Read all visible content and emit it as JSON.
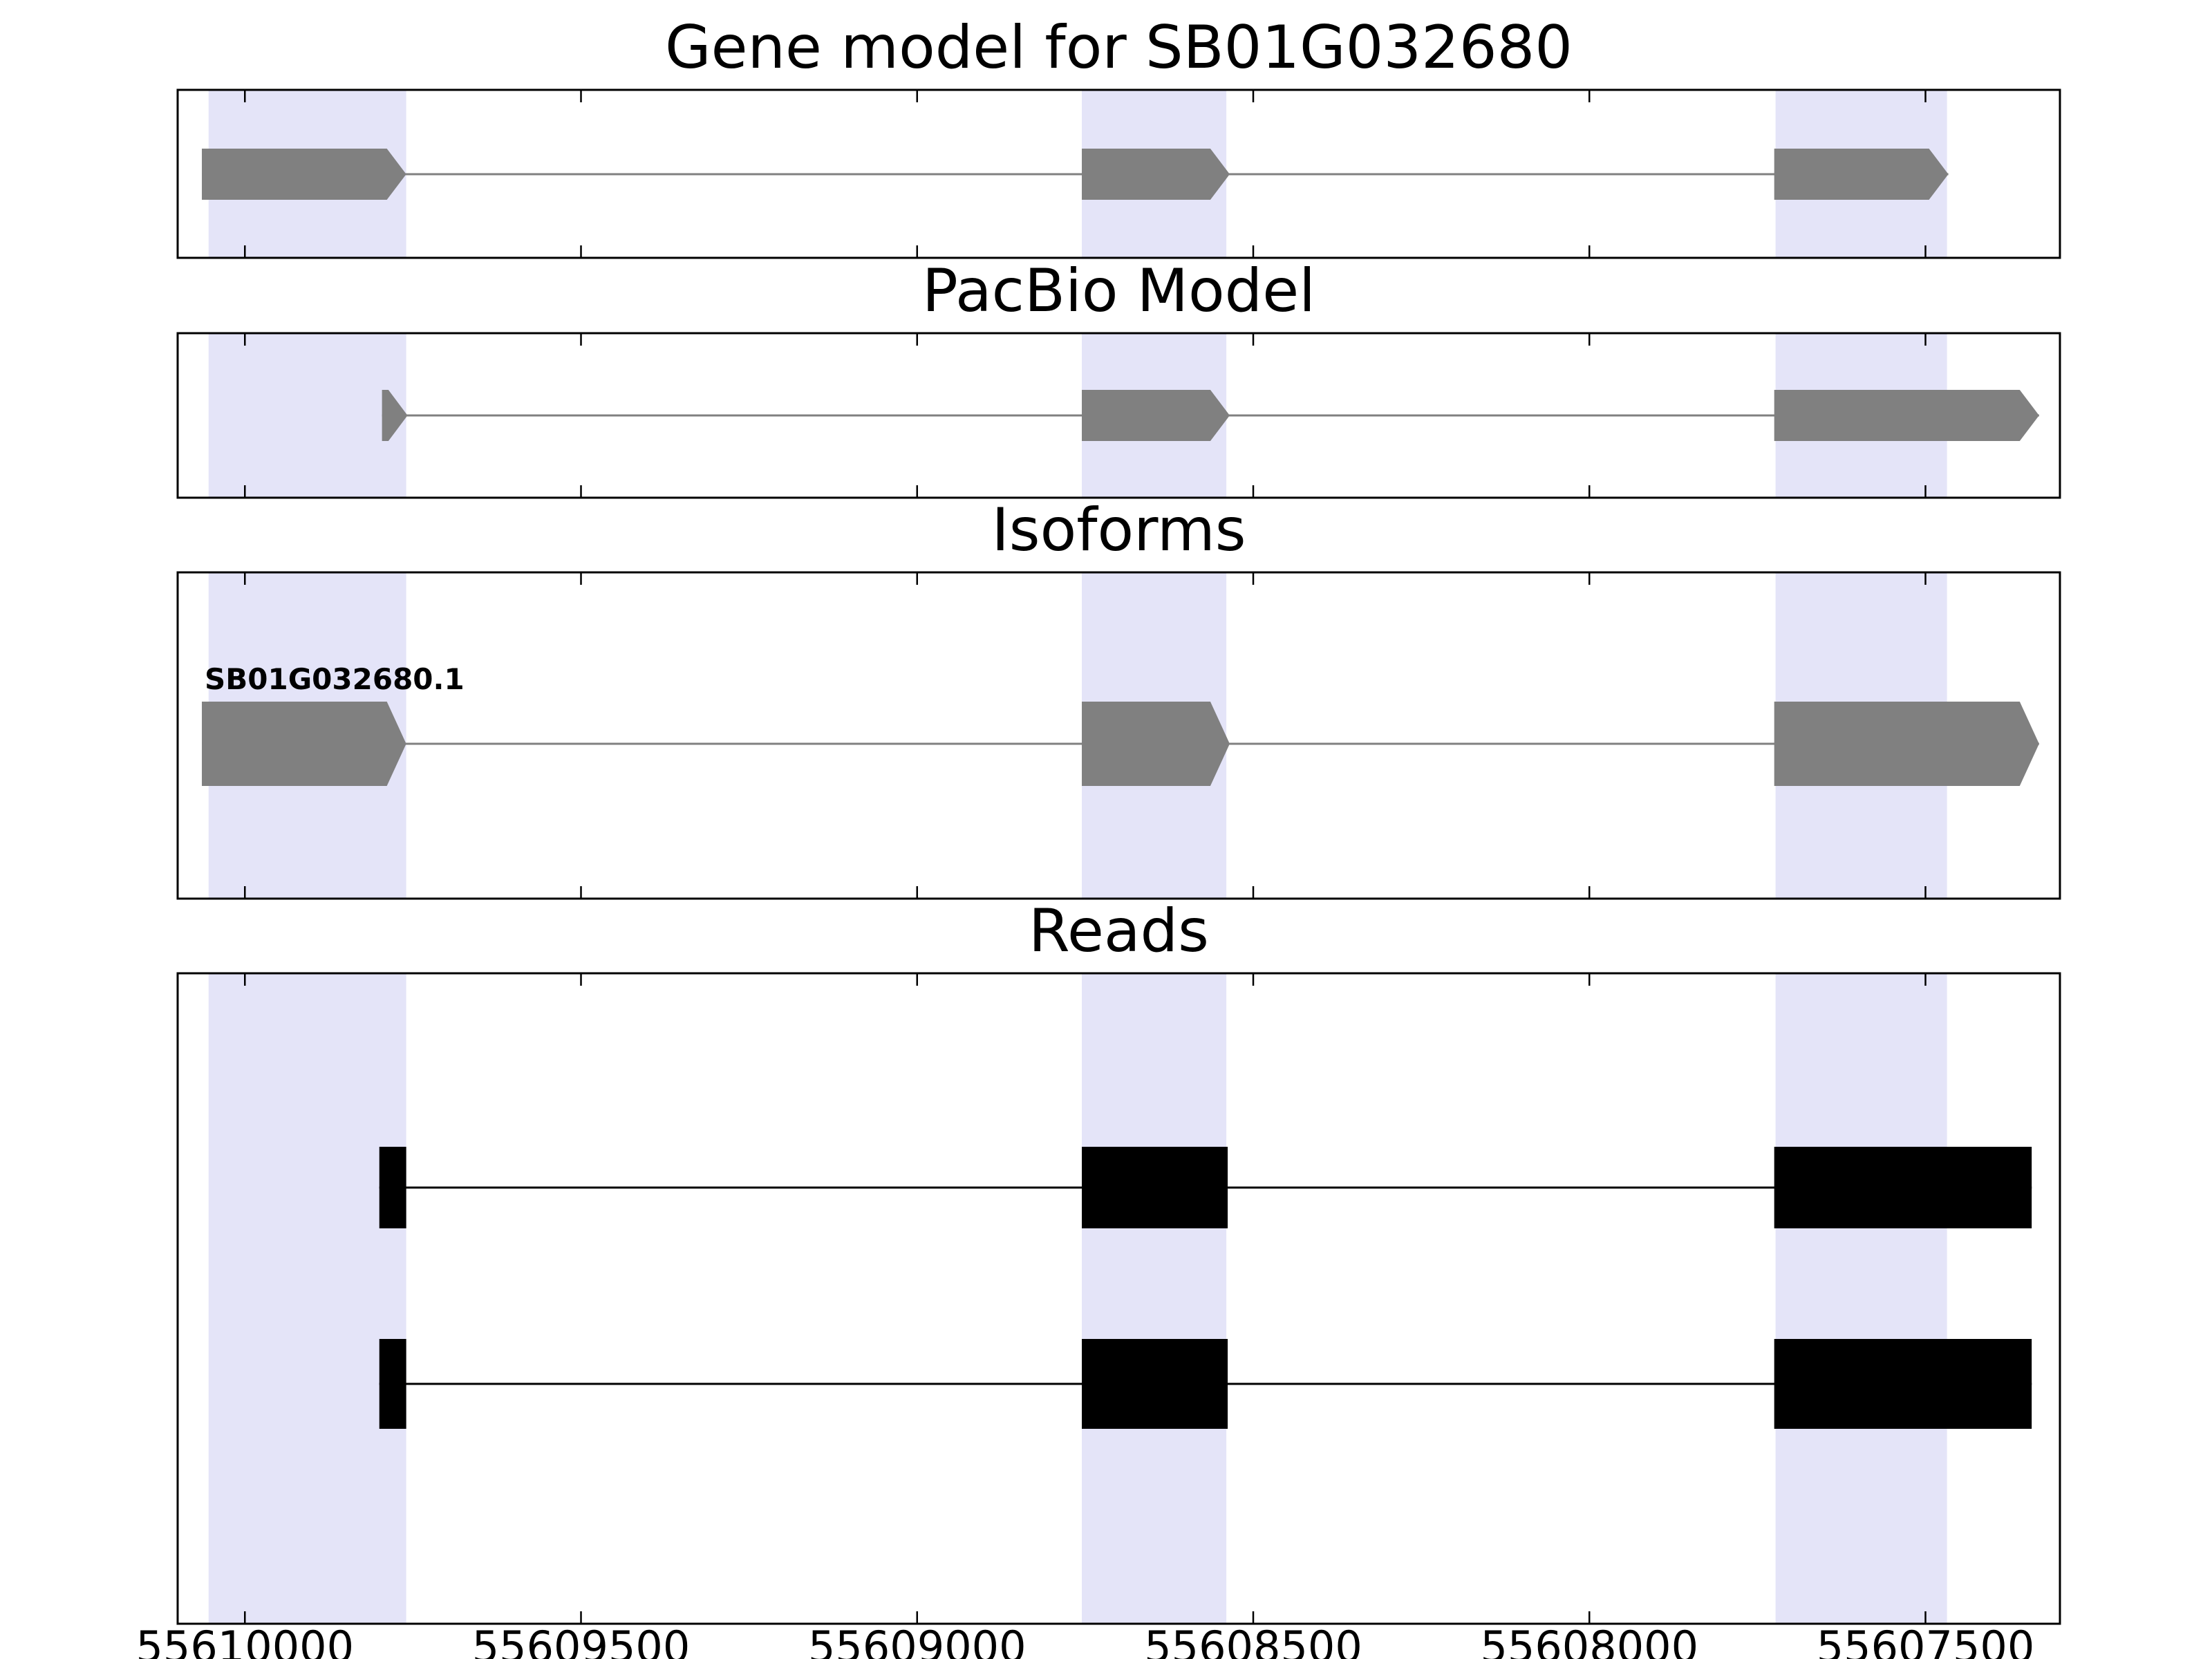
{
  "figure": {
    "background": "#ffffff",
    "highlight_color": "#e4e4f8",
    "gene_color": "#808080",
    "read_color": "#000000",
    "border_color": "#000000"
  },
  "chart_data": {
    "type": "gene-model-tracks",
    "x_axis": {
      "ticks": [
        "55610000",
        "55609500",
        "55609000",
        "55608500",
        "55608000",
        "55607500"
      ],
      "tick_values": [
        55610000,
        55609500,
        55609000,
        55608500,
        55608000,
        55607500
      ],
      "range": [
        55610100,
        55607300
      ],
      "inverted": true,
      "grid": false
    },
    "highlight_regions": [
      {
        "start": 55610054,
        "end": 55609760
      },
      {
        "start": 55608755,
        "end": 55608540
      },
      {
        "start": 55607723,
        "end": 55607468
      }
    ],
    "panels": [
      {
        "id": "gene-model",
        "title": "Gene model for SB01G032680",
        "features": [
          {
            "kind": "transcript",
            "color": "gene",
            "arrow": true,
            "exons": [
              [
                55610064,
                55609760
              ],
              [
                55608755,
                55608535
              ],
              [
                55607725,
                55607466
              ]
            ]
          }
        ]
      },
      {
        "id": "pacbio-model",
        "title": "PacBio Model",
        "features": [
          {
            "kind": "transcript",
            "color": "gene",
            "arrow": true,
            "exons": [
              [
                55609796,
                55609758
              ],
              [
                55608755,
                55608535
              ],
              [
                55607725,
                55607331
              ]
            ]
          }
        ]
      },
      {
        "id": "isoforms",
        "title": "Isoforms",
        "features": [
          {
            "kind": "transcript",
            "label": "SB01G032680.1",
            "color": "gene",
            "arrow": true,
            "exons": [
              [
                55610064,
                55609760
              ],
              [
                55608755,
                55608535
              ],
              [
                55607725,
                55607331
              ]
            ]
          }
        ]
      },
      {
        "id": "reads",
        "title": "Reads",
        "features": [
          {
            "kind": "read",
            "color": "read",
            "arrow": false,
            "exons": [
              [
                55609800,
                55609760
              ],
              [
                55608755,
                55608538
              ],
              [
                55607725,
                55607342
              ]
            ]
          },
          {
            "kind": "read",
            "color": "read",
            "arrow": false,
            "exons": [
              [
                55609800,
                55609760
              ],
              [
                55608755,
                55608538
              ],
              [
                55607725,
                55607342
              ]
            ]
          }
        ]
      }
    ]
  }
}
